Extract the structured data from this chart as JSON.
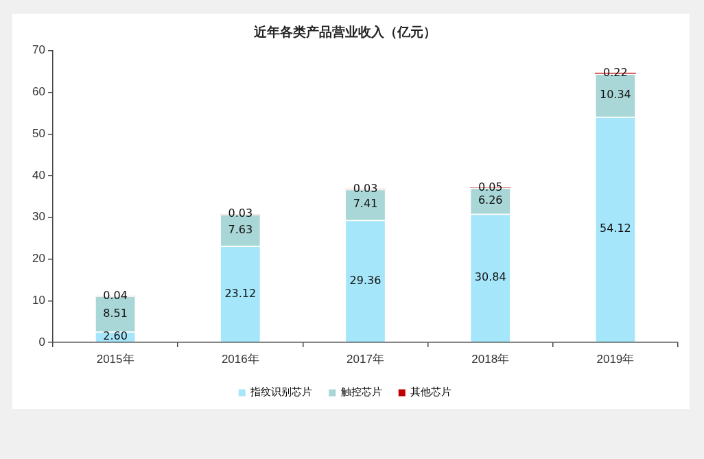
{
  "chart_data": {
    "type": "bar",
    "title": "近年各类产品营业收入（亿元）",
    "categories": [
      "2015年",
      "2016年",
      "2017年",
      "2018年",
      "2019年"
    ],
    "stacked": true,
    "series": [
      {
        "name": "指纹识别芯片",
        "color": "#a6e6fa",
        "values": [
          2.6,
          23.12,
          29.36,
          30.84,
          54.12
        ],
        "value_labels": [
          "2.60",
          "23.12",
          "29.36",
          "30.84",
          "54.12"
        ]
      },
      {
        "name": "触控芯片",
        "color": "#a9d6d6",
        "values": [
          8.51,
          7.63,
          7.41,
          6.26,
          10.34
        ],
        "value_labels": [
          "8.51",
          "7.63",
          "7.41",
          "6.26",
          "10.34"
        ]
      },
      {
        "name": "其他芯片",
        "color": "#c00000",
        "values": [
          0.04,
          0.03,
          0.03,
          0.05,
          0.22
        ],
        "value_labels": [
          "0.04",
          "0.03",
          "0.03",
          "0.05",
          "0.22"
        ]
      }
    ],
    "ylim": [
      0,
      70
    ],
    "yticks": [
      0,
      10,
      20,
      30,
      40,
      50,
      60,
      70
    ],
    "legend": "bottom",
    "grid": false
  }
}
